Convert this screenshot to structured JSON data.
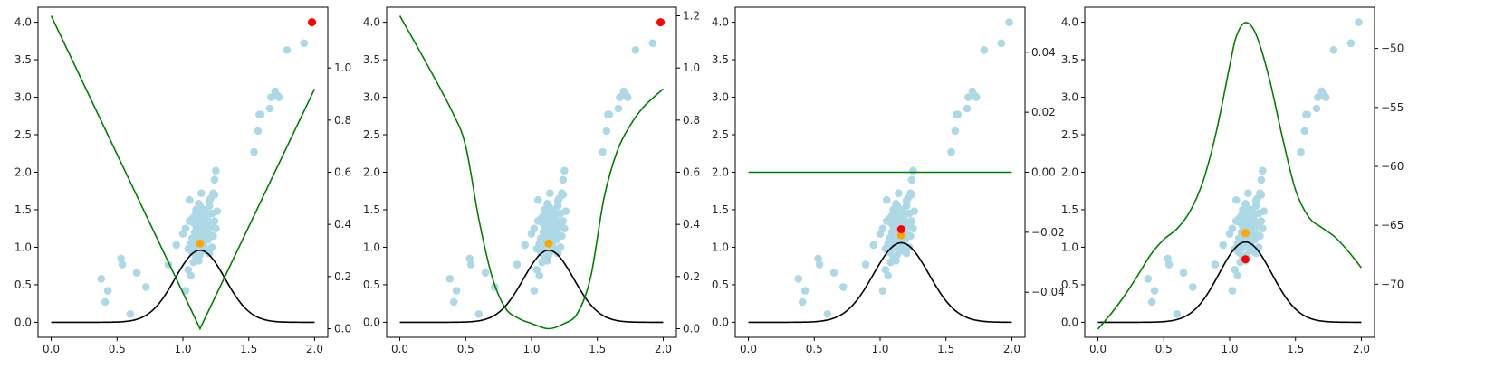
{
  "figure": {
    "colors": {
      "scatter": "#add8e6",
      "orange": "#ffa500",
      "red": "#ff0000",
      "green": "#008000",
      "black": "#000000"
    }
  },
  "chart_data": [
    {
      "type": "scatter",
      "panel": 1,
      "xlim": [
        -0.1,
        2.1
      ],
      "ylim": [
        -0.2,
        4.2
      ],
      "y2lim": [
        -0.033,
        1.233
      ],
      "xticks": [
        "0.0",
        "0.5",
        "1.0",
        "1.5",
        "2.0"
      ],
      "yticks": [
        "0.0",
        "0.5",
        "1.0",
        "1.5",
        "2.0",
        "2.5",
        "3.0",
        "3.5",
        "4.0"
      ],
      "y2ticks": [
        "0.0",
        "0.2",
        "0.4",
        "0.6",
        "0.8",
        "1.0"
      ],
      "orange_point": [
        1.13,
        1.05
      ],
      "red_point": [
        1.98,
        4.0
      ],
      "green_line": {
        "axis": "right",
        "x": [
          0.0,
          1.13,
          2.0
        ],
        "y": [
          1.2,
          0.0,
          0.92
        ]
      },
      "black_curve": {
        "axis": "left",
        "center": 1.13,
        "height": 0.96,
        "width": 0.19
      }
    },
    {
      "type": "scatter",
      "panel": 2,
      "xlim": [
        -0.1,
        2.1
      ],
      "ylim": [
        -0.2,
        4.2
      ],
      "y2lim": [
        -0.033,
        1.233
      ],
      "xticks": [
        "0.0",
        "0.5",
        "1.0",
        "1.5",
        "2.0"
      ],
      "yticks": [
        "0.0",
        "0.5",
        "1.0",
        "1.5",
        "2.0",
        "2.5",
        "3.0",
        "3.5",
        "4.0"
      ],
      "y2ticks": [
        "0.0",
        "0.2",
        "0.4",
        "0.6",
        "0.8",
        "1.0",
        "1.2"
      ],
      "orange_point": [
        1.13,
        1.05
      ],
      "red_point": [
        1.98,
        4.0
      ],
      "green_line": {
        "axis": "right",
        "x": [
          0.0,
          0.2,
          0.4,
          0.5,
          0.6,
          0.7,
          0.8,
          0.9,
          1.0,
          1.13,
          1.25,
          1.35,
          1.45,
          1.55,
          1.65,
          1.75,
          1.85,
          2.0
        ],
        "y": [
          1.2,
          1.02,
          0.83,
          0.7,
          0.42,
          0.2,
          0.08,
          0.04,
          0.02,
          0.0,
          0.02,
          0.06,
          0.2,
          0.5,
          0.68,
          0.78,
          0.85,
          0.92
        ]
      },
      "black_curve": {
        "axis": "left",
        "center": 1.13,
        "height": 0.96,
        "width": 0.19
      }
    },
    {
      "type": "scatter",
      "panel": 3,
      "xlim": [
        -0.1,
        2.1
      ],
      "ylim": [
        -0.2,
        4.2
      ],
      "y2lim": [
        -0.055,
        0.055
      ],
      "xticks": [
        "0.0",
        "0.5",
        "1.0",
        "1.5",
        "2.0"
      ],
      "yticks": [
        "0.0",
        "0.5",
        "1.0",
        "1.5",
        "2.0",
        "2.5",
        "3.0",
        "3.5",
        "4.0"
      ],
      "y2ticks": [
        "−0.04",
        "−0.02",
        "0.00",
        "0.02",
        "0.04"
      ],
      "orange_point": [
        1.16,
        1.16
      ],
      "red_point": [
        1.16,
        1.24
      ],
      "green_line": {
        "axis": "right",
        "x": [
          0.0,
          2.0
        ],
        "y": [
          0.0,
          0.0
        ]
      },
      "black_curve": {
        "axis": "left",
        "center": 1.16,
        "height": 1.06,
        "width": 0.21
      }
    },
    {
      "type": "scatter",
      "panel": 4,
      "xlim": [
        -0.1,
        2.1
      ],
      "ylim": [
        -0.2,
        4.2
      ],
      "y2lim": [
        -74.5,
        -46.5
      ],
      "xticks": [
        "0.0",
        "0.5",
        "1.0",
        "1.5",
        "2.0"
      ],
      "yticks": [
        "0.0",
        "0.5",
        "1.0",
        "1.5",
        "2.0",
        "2.5",
        "3.0",
        "3.5",
        "4.0"
      ],
      "y2ticks": [
        "−70",
        "−65",
        "−60",
        "−55",
        "−50"
      ],
      "orange_point": [
        1.12,
        1.19
      ],
      "red_point": [
        1.12,
        0.84
      ],
      "green_line": {
        "axis": "right",
        "x": [
          0.0,
          0.1,
          0.2,
          0.3,
          0.4,
          0.5,
          0.6,
          0.7,
          0.8,
          0.9,
          1.0,
          1.05,
          1.12,
          1.2,
          1.3,
          1.4,
          1.5,
          1.6,
          1.7,
          1.8,
          1.9,
          2.0
        ],
        "y": [
          -73.8,
          -72.5,
          -71.0,
          -69.3,
          -67.5,
          -66.2,
          -65.3,
          -63.8,
          -61.2,
          -57.0,
          -51.5,
          -49.0,
          -47.8,
          -48.8,
          -52.5,
          -57.5,
          -62.0,
          -64.3,
          -65.2,
          -66.0,
          -67.2,
          -68.6
        ]
      },
      "black_curve": {
        "axis": "left",
        "center": 1.12,
        "height": 1.07,
        "width": 0.2
      }
    }
  ],
  "scatter_points": {
    "x": [
      0.38,
      0.41,
      0.43,
      0.53,
      0.54,
      0.6,
      0.65,
      0.72,
      0.89,
      0.95,
      1.02,
      1.04,
      1.04,
      1.05,
      1.06,
      1.06,
      1.07,
      1.07,
      1.08,
      1.08,
      1.09,
      1.09,
      1.09,
      1.1,
      1.1,
      1.1,
      1.11,
      1.11,
      1.11,
      1.12,
      1.12,
      1.12,
      1.13,
      1.13,
      1.13,
      1.14,
      1.14,
      1.15,
      1.15,
      1.15,
      1.16,
      1.16,
      1.17,
      1.17,
      1.17,
      1.18,
      1.18,
      1.18,
      1.19,
      1.19,
      1.2,
      1.2,
      1.2,
      1.21,
      1.21,
      1.22,
      1.22,
      1.23,
      1.23,
      1.24,
      1.24,
      1.25,
      1.25,
      1.26,
      1.08,
      1.1,
      1.12,
      1.14,
      1.16,
      1.18,
      1.2,
      1.22,
      1.24,
      1.0,
      1.02,
      1.07,
      1.05,
      1.54,
      1.57,
      1.59,
      1.58,
      1.66,
      1.67,
      1.7,
      1.72,
      1.73,
      1.79,
      1.92,
      1.98
    ],
    "y": [
      0.58,
      0.27,
      0.42,
      0.85,
      0.77,
      0.11,
      0.66,
      0.47,
      0.77,
      1.03,
      0.42,
      0.7,
      0.98,
      1.63,
      0.62,
      1.05,
      1.38,
      0.93,
      0.8,
      1.1,
      1.42,
      0.98,
      1.2,
      1.28,
      0.87,
      1.5,
      1.05,
      1.35,
      1.12,
      0.82,
      1.25,
      1.45,
      0.9,
      1.55,
      1.15,
      1.72,
      1.08,
      0.98,
      1.38,
      1.22,
      1.3,
      1.02,
      1.48,
      1.12,
      1.2,
      0.95,
      1.25,
      1.42,
      1.35,
      1.1,
      1.18,
      1.55,
      0.92,
      1.28,
      1.65,
      1.0,
      1.45,
      1.72,
      1.15,
      1.9,
      1.35,
      2.02,
      1.25,
      1.48,
      1.33,
      1.45,
      1.58,
      1.28,
      1.5,
      1.38,
      1.62,
      1.45,
      1.7,
      1.18,
      1.25,
      1.12,
      1.35,
      2.27,
      2.55,
      2.77,
      2.77,
      2.85,
      3.0,
      3.08,
      3.02,
      3.0,
      3.63,
      3.72,
      4.0
    ]
  }
}
